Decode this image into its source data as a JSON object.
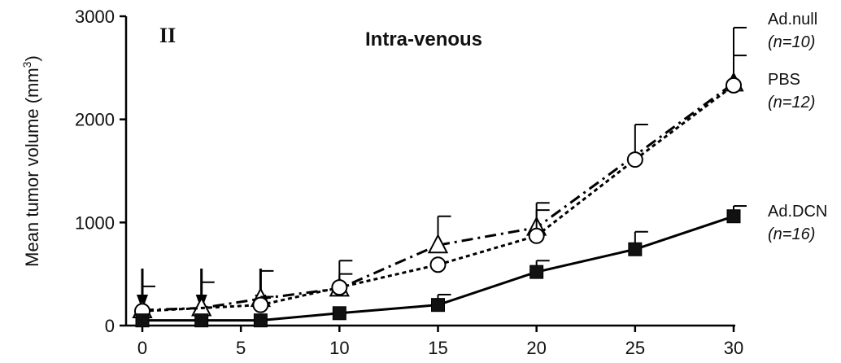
{
  "chart_data": {
    "type": "line",
    "panel_label": "II",
    "title": "Intra-venous",
    "ylabel_main": "Mean tumor volume (mm",
    "ylabel_sup": "3",
    "ylabel_close": ")",
    "xlim": [
      0,
      30
    ],
    "ylim": [
      0,
      3000
    ],
    "x_ticks": [
      0,
      5,
      10,
      15,
      20,
      25,
      30
    ],
    "y_ticks": [
      0,
      1000,
      2000,
      3000
    ],
    "injection_days": [
      0,
      3,
      6
    ],
    "series": [
      {
        "name": "Ad.null",
        "n_label": "(n=10)",
        "marker": "triangle",
        "line_style": "dash-dot",
        "x": [
          0,
          3,
          6,
          10,
          15,
          20,
          30
        ],
        "y": [
          150,
          170,
          260,
          360,
          780,
          950,
          2350
        ],
        "err": [
          230,
          250,
          270,
          270,
          280,
          240,
          270
        ]
      },
      {
        "name": "PBS",
        "n_label": "(n=12)",
        "marker": "circle",
        "line_style": "dotted",
        "x": [
          0,
          6,
          10,
          15,
          20,
          25,
          30
        ],
        "y": [
          140,
          200,
          370,
          590,
          870,
          1610,
          2330
        ],
        "err": [
          0,
          80,
          130,
          0,
          250,
          340,
          560
        ]
      },
      {
        "name": "Ad.DCN",
        "n_label": "(n=16)",
        "marker": "square",
        "line_style": "solid",
        "x": [
          0,
          3,
          6,
          10,
          15,
          20,
          25,
          30
        ],
        "y": [
          50,
          50,
          50,
          120,
          200,
          520,
          740,
          1060
        ],
        "err": [
          0,
          0,
          0,
          0,
          100,
          110,
          170,
          100
        ]
      }
    ]
  }
}
